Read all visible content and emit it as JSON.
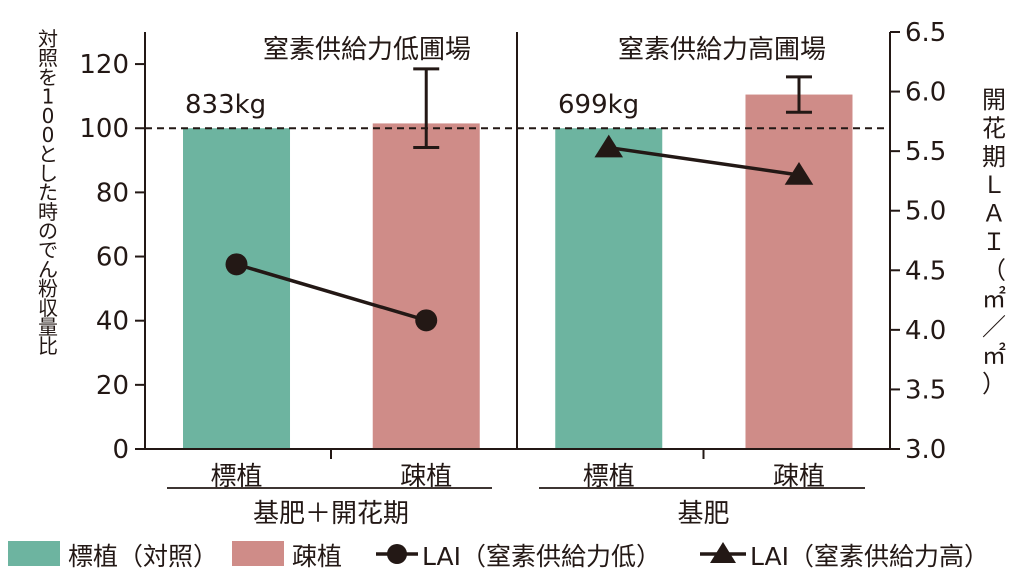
{
  "chart_data": {
    "type": "bar",
    "title": "",
    "panels": [
      {
        "title": "窒素供給力低圃場",
        "baseline_label": "833kg",
        "group_label": "基肥＋開花期",
        "categories": [
          "標植",
          "疎植"
        ],
        "values": [
          100,
          101.5
        ],
        "error_bars": [
          null,
          [
            94,
            118.5
          ]
        ],
        "lai_values": [
          4.55,
          4.08
        ],
        "lai_marker": "circle"
      },
      {
        "title": "窒素供給力高圃場",
        "baseline_label": "699kg",
        "group_label": "基肥",
        "categories": [
          "標植",
          "疎植"
        ],
        "values": [
          100,
          110.5
        ],
        "error_bars": [
          null,
          [
            105,
            116
          ]
        ],
        "lai_values": [
          5.53,
          5.3
        ],
        "lai_marker": "triangle"
      }
    ],
    "ylabel_left": "対照を100とした時のでん粉収量比",
    "ylabel_right": "開花期ＬＡＩ（㎡／㎡）",
    "ylim_left": [
      0,
      130
    ],
    "yticks_left": [
      "0",
      "20",
      "40",
      "60",
      "80",
      "100",
      "120"
    ],
    "ylim_right": [
      3.0,
      6.5
    ],
    "yticks_right": [
      "3.0",
      "3.5",
      "4.0",
      "4.5",
      "5.0",
      "5.5",
      "6.0",
      "6.5"
    ],
    "reference_line": 100,
    "legend": [
      {
        "label": "標植（対照）",
        "kind": "patch",
        "color": "#6db4a0"
      },
      {
        "label": "疎植",
        "kind": "patch",
        "color": "#cf8c88"
      },
      {
        "label": "LAI（窒素供給力低）",
        "kind": "line-circle",
        "color": "#231815"
      },
      {
        "label": "LAI（窒素供給力高）",
        "kind": "line-triangle",
        "color": "#231815"
      }
    ],
    "colors": {
      "standard": "#6db4a0",
      "sparse": "#cf8c88",
      "ink": "#231815"
    }
  }
}
